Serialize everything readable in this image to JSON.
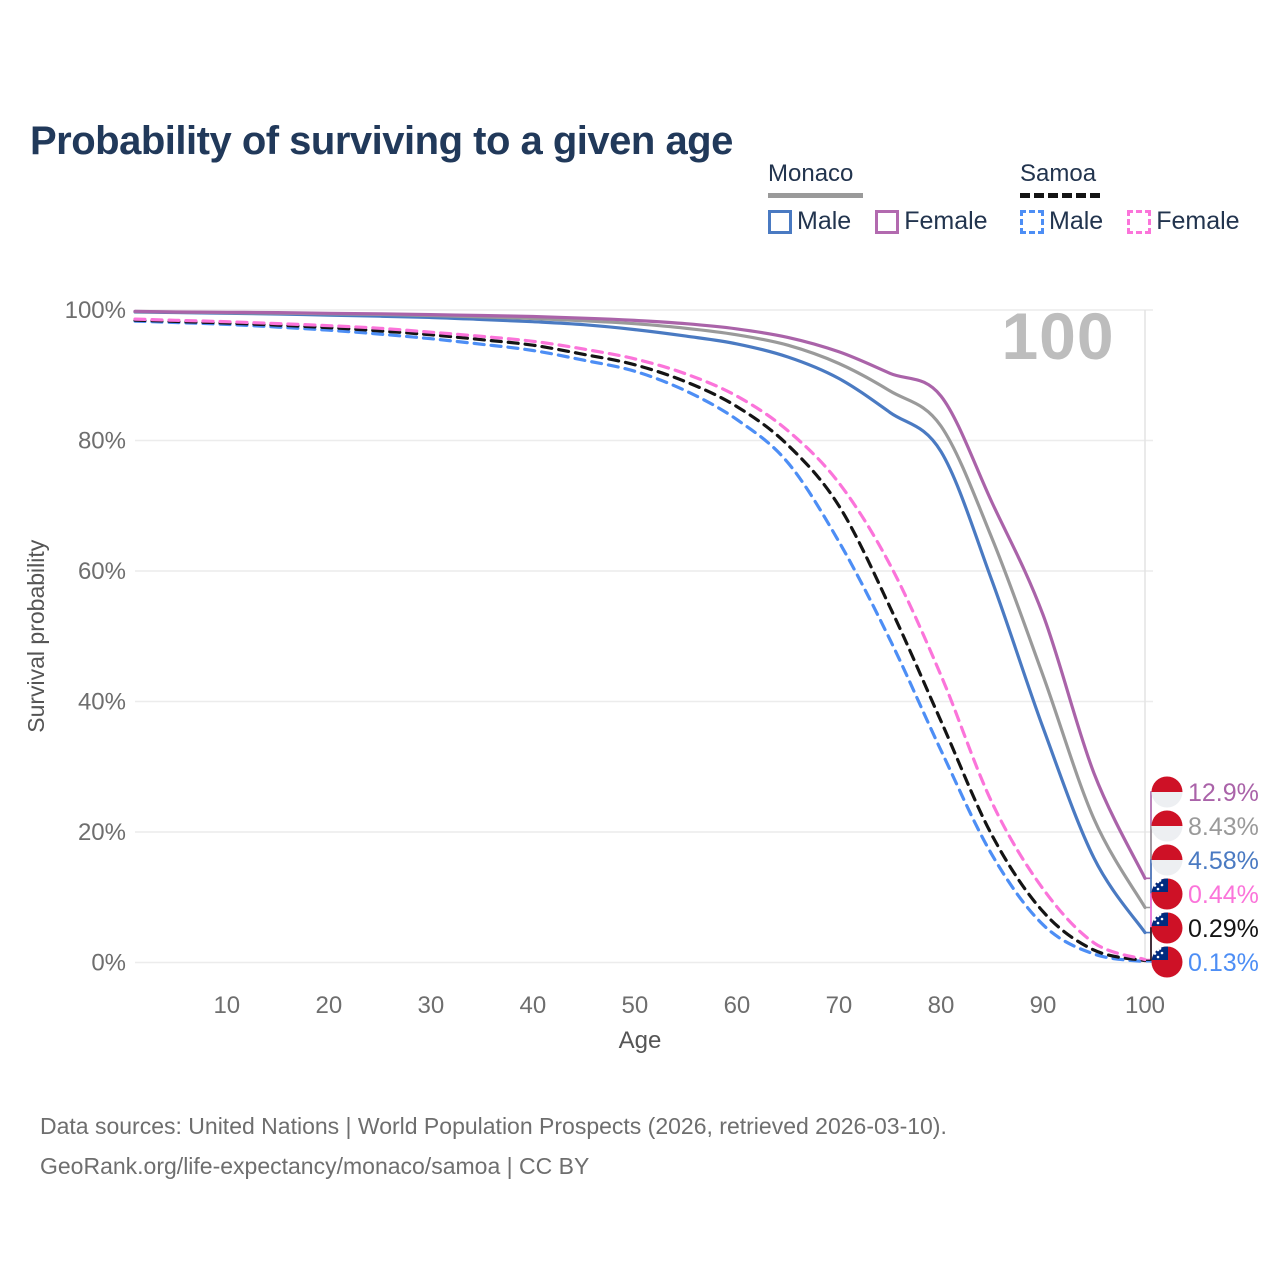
{
  "title": "Probability of surviving to a given age",
  "legend": {
    "groups": [
      {
        "label": "Monaco",
        "line_style": "solid",
        "line_color": "#9a9a9a",
        "items": [
          {
            "label": "Male",
            "color": "#4a7ac2",
            "dash": false
          },
          {
            "label": "Female",
            "color": "#b26aaf",
            "dash": false
          }
        ]
      },
      {
        "label": "Samoa",
        "line_style": "dashed",
        "line_color": "#141414",
        "items": [
          {
            "label": "Male",
            "color": "#4d8ef5",
            "dash": true
          },
          {
            "label": "Female",
            "color": "#fb74da",
            "dash": true
          }
        ]
      }
    ]
  },
  "chart_data": {
    "type": "line",
    "title": "Probability of surviving to a given age",
    "xlabel": "Age",
    "ylabel": "Survival probability",
    "xlim": [
      1,
      100
    ],
    "ylim": [
      0,
      100
    ],
    "grid": true,
    "hover_age": "100",
    "x_ticks": [
      10,
      20,
      30,
      40,
      50,
      60,
      70,
      80,
      90,
      100
    ],
    "y_ticks": [
      {
        "value": 0,
        "label": "0%"
      },
      {
        "value": 20,
        "label": "20%"
      },
      {
        "value": 40,
        "label": "40%"
      },
      {
        "value": 60,
        "label": "60%"
      },
      {
        "value": 80,
        "label": "80%"
      },
      {
        "value": 100,
        "label": "100%"
      }
    ],
    "x": [
      1,
      5,
      10,
      15,
      20,
      25,
      30,
      35,
      40,
      45,
      50,
      55,
      60,
      65,
      70,
      75,
      80,
      85,
      90,
      95,
      100
    ],
    "series": [
      {
        "name": "Samoa Male",
        "country": "Samoa",
        "sex": "Male",
        "color": "#4d8ef5",
        "dash": "dashed",
        "flag": "samoa-flag-icon",
        "end_label": "0.13%",
        "values": [
          98.3,
          98.08,
          97.8,
          97.38,
          96.9,
          96.3,
          95.6,
          94.75,
          93.8,
          92.3,
          90.6,
          87.6,
          83.2,
          76.6,
          64.5,
          49.5,
          32.5,
          16.5,
          5.8,
          1.3,
          0.13
        ]
      },
      {
        "name": "Samoa Both sexes",
        "country": "Samoa",
        "sex": "Both",
        "color": "#141414",
        "dash": "dashed",
        "flag": "samoa-flag-icon",
        "end_label": "0.29%",
        "values": [
          98.45,
          98.25,
          98.0,
          97.68,
          97.3,
          96.8,
          96.2,
          95.45,
          94.6,
          93.2,
          91.6,
          89.0,
          85.2,
          79.3,
          70.0,
          54.5,
          37.0,
          19.5,
          7.8,
          1.9,
          0.29
        ]
      },
      {
        "name": "Samoa Female",
        "country": "Samoa",
        "sex": "Female",
        "color": "#fb74da",
        "dash": "dashed",
        "flag": "samoa-flag-icon",
        "end_label": "0.44%",
        "values": [
          98.6,
          98.42,
          98.2,
          97.92,
          97.6,
          97.2,
          96.6,
          95.95,
          95.2,
          94.0,
          92.5,
          90.2,
          86.8,
          81.5,
          73.5,
          61.0,
          44.0,
          24.5,
          11.3,
          3.0,
          0.44
        ]
      },
      {
        "name": "Monaco Male",
        "country": "Monaco",
        "sex": "Male",
        "color": "#4a7ac2",
        "dash": "solid",
        "flag": "monaco-flag-icon",
        "end_label": "4.58%",
        "values": [
          99.7,
          99.62,
          99.5,
          99.38,
          99.22,
          99.05,
          98.85,
          98.55,
          98.2,
          97.75,
          97.0,
          96.0,
          94.8,
          92.8,
          89.5,
          84.3,
          78.3,
          58.5,
          36.0,
          16.0,
          4.58
        ]
      },
      {
        "name": "Monaco Both sexes",
        "country": "Monaco",
        "sex": "Both",
        "color": "#9a9a9a",
        "dash": "solid",
        "flag": "monaco-flag-icon",
        "end_label": "8.43%",
        "values": [
          99.75,
          99.68,
          99.6,
          99.52,
          99.42,
          99.32,
          99.15,
          98.95,
          98.7,
          98.35,
          97.9,
          97.2,
          96.2,
          94.6,
          91.8,
          87.6,
          82.2,
          65.0,
          44.0,
          22.0,
          8.43
        ]
      },
      {
        "name": "Monaco Female",
        "country": "Monaco",
        "sex": "Female",
        "color": "#aa63a9",
        "dash": "solid",
        "flag": "monaco-flag-icon",
        "end_label": "12.9%",
        "values": [
          99.8,
          99.7,
          99.65,
          99.6,
          99.5,
          99.42,
          99.3,
          99.15,
          99.0,
          98.75,
          98.4,
          97.9,
          97.1,
          95.8,
          93.6,
          90.3,
          86.8,
          70.5,
          53.3,
          29.0,
          12.9
        ]
      }
    ]
  },
  "footer": {
    "line1": "Data sources: United Nations | World Population Prospects (2026, retrieved 2026-03-10).",
    "line2": "GeoRank.org/life-expectancy/monaco/samoa | CC BY"
  }
}
